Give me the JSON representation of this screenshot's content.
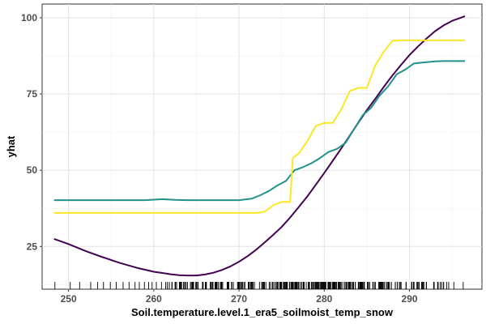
{
  "chart_data": {
    "type": "line",
    "title": "",
    "xlabel": "Soil.temperature.level.1_era5_soilmoist_temp_snow",
    "ylabel": "yhat",
    "xlim": [
      246.9,
      298.5
    ],
    "ylim": [
      11.0,
      104.5
    ],
    "x_ticks": [
      250,
      260,
      270,
      280,
      290
    ],
    "y_ticks": [
      25,
      50,
      75,
      100
    ],
    "x_tick_labels": [
      "250",
      "260",
      "270",
      "280",
      "290"
    ],
    "y_tick_labels": [
      "25",
      "50",
      "75",
      "100"
    ],
    "grid": true,
    "legend": "none",
    "rug": true,
    "series": [
      {
        "color": "#440154",
        "points": [
          [
            248.3,
            27.5
          ],
          [
            250,
            25.8
          ],
          [
            252,
            23.5
          ],
          [
            254,
            21.5
          ],
          [
            256,
            19.6
          ],
          [
            258,
            18.0
          ],
          [
            260,
            16.7
          ],
          [
            261,
            16.3
          ],
          [
            262,
            15.9
          ],
          [
            263,
            15.6
          ],
          [
            264,
            15.5
          ],
          [
            265,
            15.5
          ],
          [
            266,
            15.8
          ],
          [
            267,
            16.4
          ],
          [
            268,
            17.3
          ],
          [
            269,
            18.5
          ],
          [
            270,
            20.0
          ],
          [
            271,
            21.8
          ],
          [
            272,
            23.9
          ],
          [
            273,
            26.3
          ],
          [
            274,
            28.8
          ],
          [
            275,
            31.4
          ],
          [
            276,
            34.5
          ],
          [
            277,
            37.9
          ],
          [
            278,
            41.4
          ],
          [
            279,
            45.2
          ],
          [
            280,
            49.1
          ],
          [
            281,
            53.1
          ],
          [
            282,
            57.2
          ],
          [
            283,
            61.4
          ],
          [
            284,
            65.6
          ],
          [
            285,
            69.7
          ],
          [
            286,
            73.5
          ],
          [
            287,
            77.4
          ],
          [
            288,
            81.1
          ],
          [
            289,
            84.5
          ],
          [
            290,
            87.8
          ],
          [
            291,
            90.6
          ],
          [
            292,
            93.2
          ],
          [
            293,
            95.6
          ],
          [
            294,
            97.5
          ],
          [
            295,
            99.0
          ],
          [
            296.5,
            100.5
          ]
        ]
      },
      {
        "color": "#21918C",
        "points": [
          [
            248.3,
            40.2
          ],
          [
            255,
            40.2
          ],
          [
            259,
            40.2
          ],
          [
            261,
            40.5
          ],
          [
            262.5,
            40.3
          ],
          [
            264,
            40.2
          ],
          [
            270,
            40.2
          ],
          [
            271.5,
            40.7
          ],
          [
            272.5,
            41.8
          ],
          [
            273.5,
            43.2
          ],
          [
            274.5,
            45.0
          ],
          [
            275.5,
            46.5
          ],
          [
            276.5,
            50.0
          ],
          [
            277.5,
            51.0
          ],
          [
            278.5,
            52.3
          ],
          [
            279.5,
            54.0
          ],
          [
            280.5,
            56.0
          ],
          [
            281.5,
            57.0
          ],
          [
            282.5,
            59.0
          ],
          [
            283.5,
            63.5
          ],
          [
            284.5,
            68.0
          ],
          [
            285.5,
            70.5
          ],
          [
            286.5,
            74.5
          ],
          [
            287.5,
            77.5
          ],
          [
            288.5,
            81.5
          ],
          [
            289.5,
            83.0
          ],
          [
            290.5,
            85.0
          ],
          [
            291.5,
            85.3
          ],
          [
            293,
            85.7
          ],
          [
            294,
            85.8
          ],
          [
            296.5,
            85.8
          ]
        ]
      },
      {
        "color": "#FDE725",
        "points": [
          [
            248.3,
            36.0
          ],
          [
            255,
            36.0
          ],
          [
            265,
            36.0
          ],
          [
            272,
            36.0
          ],
          [
            273,
            36.4
          ],
          [
            274,
            38.5
          ],
          [
            275,
            39.6
          ],
          [
            276,
            39.6
          ],
          [
            276.3,
            54.0
          ],
          [
            277,
            55.5
          ],
          [
            278,
            59.5
          ],
          [
            279,
            64.5
          ],
          [
            280,
            65.5
          ],
          [
            281,
            65.5
          ],
          [
            282,
            70.0
          ],
          [
            283,
            76.0
          ],
          [
            284,
            77.0
          ],
          [
            285,
            77.0
          ],
          [
            286,
            84.5
          ],
          [
            287,
            89.0
          ],
          [
            288,
            92.5
          ],
          [
            289,
            92.6
          ],
          [
            290,
            92.6
          ],
          [
            296.5,
            92.6
          ]
        ]
      }
    ]
  }
}
